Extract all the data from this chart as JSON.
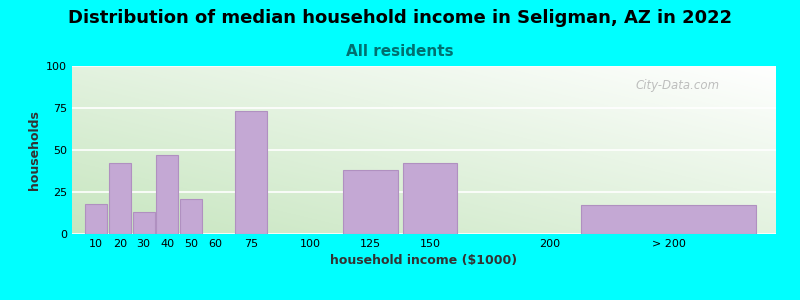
{
  "title": "Distribution of median household income in Seligman, AZ in 2022",
  "subtitle": "All residents",
  "xlabel": "household income ($1000)",
  "ylabel": "households",
  "bg_color": "#00FFFF",
  "bar_color": "#C4A8D4",
  "bar_edge_color": "#B090C0",
  "categories": [
    "10",
    "20",
    "30",
    "40",
    "50",
    "60",
    "75",
    "100",
    "125",
    "150",
    "200",
    "> 200"
  ],
  "bar_centers": [
    10,
    20,
    30,
    40,
    50,
    60,
    75,
    100,
    125,
    150,
    200,
    250
  ],
  "bar_widths": [
    10,
    10,
    10,
    10,
    10,
    10,
    15,
    15,
    25,
    25,
    25,
    80
  ],
  "values": [
    18,
    42,
    13,
    47,
    21,
    0,
    73,
    0,
    38,
    42,
    0,
    17
  ],
  "xtick_positions": [
    10,
    20,
    30,
    40,
    50,
    60,
    75,
    100,
    125,
    150,
    200,
    250
  ],
  "xtick_labels": [
    "10",
    "20",
    "30",
    "40",
    "50",
    "60",
    "75",
    "100",
    "125",
    "150",
    "200",
    "> 200"
  ],
  "xlim": [
    0,
    295
  ],
  "ylim": [
    0,
    100
  ],
  "yticks": [
    0,
    25,
    50,
    75,
    100
  ],
  "watermark": "City-Data.com",
  "title_fontsize": 13,
  "subtitle_fontsize": 11,
  "label_fontsize": 9,
  "tick_fontsize": 8
}
